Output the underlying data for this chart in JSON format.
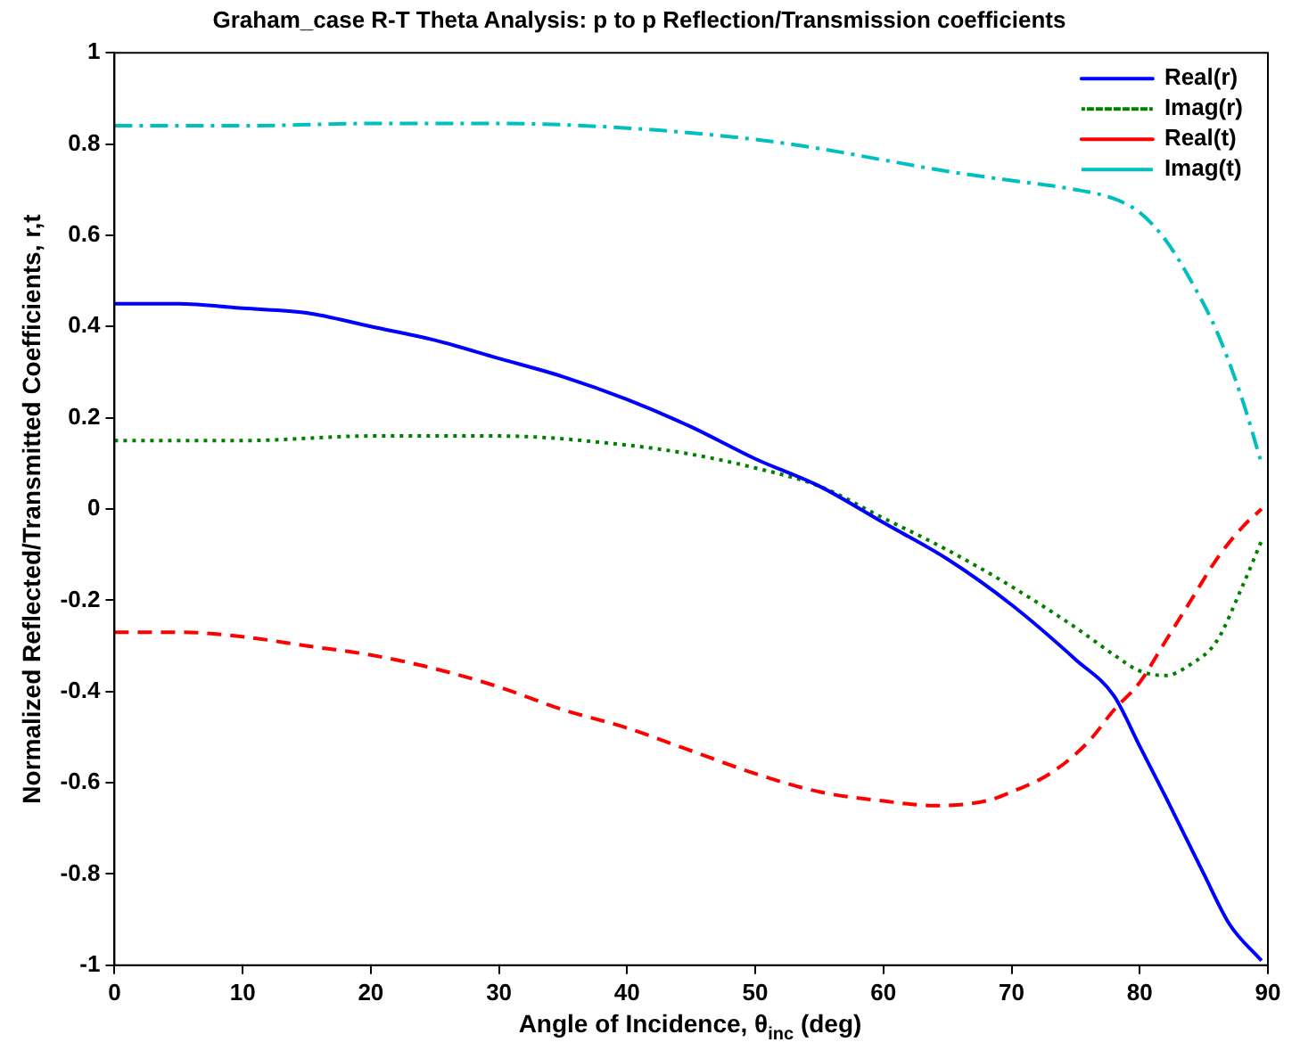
{
  "chart_data": {
    "type": "line",
    "title": "Graham_case R-T Theta Analysis: p to p Reflection/Transmission coefficients",
    "xlabel": "Angle of Incidence, θ$_{inc}$ (deg)",
    "ylabel": "Normalized Reflected/Transmitted Coefficients, r,t",
    "xlim": [
      0,
      90
    ],
    "xticks": [
      0,
      10,
      20,
      30,
      40,
      50,
      60,
      70,
      80,
      90
    ],
    "ylim": [
      -1,
      1
    ],
    "yticks": [
      -1,
      -0.8,
      -0.6,
      -0.4,
      -0.2,
      0,
      0.2,
      0.4,
      0.6,
      0.8,
      1
    ],
    "grid": false,
    "legend": "top right",
    "marker": "none",
    "series": [
      {
        "name": "Real(r)",
        "color": "#0000ff",
        "line_style": "solid",
        "x": [
          0,
          5,
          10,
          15,
          20,
          25,
          30,
          35,
          40,
          45,
          50,
          55,
          60,
          65,
          70,
          75,
          78,
          80,
          82,
          85,
          87,
          89.5
        ],
        "values": [
          0.45,
          0.45,
          0.44,
          0.43,
          0.4,
          0.37,
          0.33,
          0.29,
          0.24,
          0.18,
          0.11,
          0.05,
          -0.03,
          -0.11,
          -0.21,
          -0.33,
          -0.41,
          -0.52,
          -0.63,
          -0.8,
          -0.91,
          -0.99
        ]
      },
      {
        "name": "Imag(r)",
        "color": "#008000",
        "line_style": "dotted",
        "x": [
          0,
          10,
          20,
          30,
          40,
          45,
          50,
          55,
          60,
          65,
          70,
          75,
          78,
          80,
          82,
          84,
          86,
          88,
          89.5
        ],
        "values": [
          0.15,
          0.15,
          0.16,
          0.16,
          0.14,
          0.12,
          0.09,
          0.05,
          -0.02,
          -0.09,
          -0.17,
          -0.26,
          -0.32,
          -0.355,
          -0.365,
          -0.34,
          -0.29,
          -0.17,
          -0.07
        ]
      },
      {
        "name": "Real(t)",
        "color": "#ff0000",
        "line_style": "dashed",
        "x": [
          0,
          5,
          10,
          15,
          20,
          25,
          30,
          35,
          40,
          45,
          50,
          55,
          60,
          64,
          68,
          70,
          73,
          76,
          78,
          80,
          82,
          84,
          86,
          88,
          89.5
        ],
        "values": [
          -0.27,
          -0.27,
          -0.28,
          -0.3,
          -0.32,
          -0.35,
          -0.39,
          -0.44,
          -0.48,
          -0.53,
          -0.58,
          -0.62,
          -0.64,
          -0.65,
          -0.64,
          -0.62,
          -0.58,
          -0.51,
          -0.44,
          -0.38,
          -0.29,
          -0.2,
          -0.11,
          -0.04,
          0
        ]
      },
      {
        "name": "Imag(t)",
        "color": "#00bfbf",
        "line_style": "dashdot",
        "x": [
          0,
          10,
          20,
          30,
          40,
          50,
          55,
          60,
          65,
          70,
          75,
          78,
          80,
          82,
          84,
          86,
          88,
          89.5
        ],
        "values": [
          0.84,
          0.84,
          0.845,
          0.845,
          0.835,
          0.81,
          0.79,
          0.765,
          0.74,
          0.72,
          0.7,
          0.68,
          0.65,
          0.59,
          0.5,
          0.39,
          0.24,
          0.1
        ]
      }
    ]
  }
}
